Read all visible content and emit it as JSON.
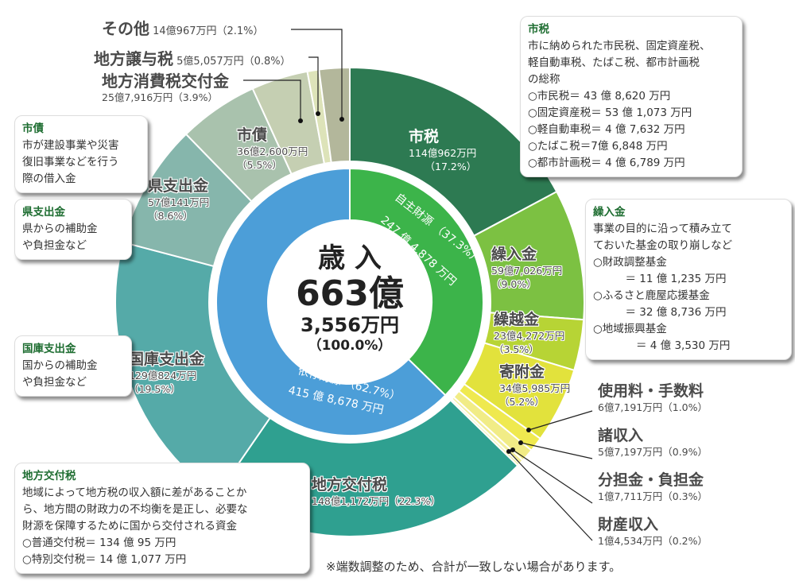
{
  "chart_data": {
    "type": "pie",
    "title": "歳入 663億3,556万円 (100.0%)",
    "total": {
      "label": "歳入",
      "amount": "663億3,556万円",
      "percent": 100.0
    },
    "inner_ring": [
      {
        "name": "自主財源",
        "amount": "247億4,878万円",
        "percent": 37.3,
        "color": "#3cb44a"
      },
      {
        "name": "依存財源",
        "amount": "415億8,678万円",
        "percent": 62.7,
        "color": "#4c9ed8"
      }
    ],
    "outer_ring": [
      {
        "name": "市税",
        "amount": "114億962万円",
        "percent": 17.2,
        "color": "#2d7a52",
        "group": "自主財源"
      },
      {
        "name": "繰入金",
        "amount": "59億7,026万円",
        "percent": 9.0,
        "color": "#7cc142",
        "group": "自主財源"
      },
      {
        "name": "繰越金",
        "amount": "23億4,272万円",
        "percent": 3.5,
        "color": "#b7d435",
        "group": "自主財源"
      },
      {
        "name": "寄附金",
        "amount": "34億5,985万円",
        "percent": 5.2,
        "color": "#e2e23c",
        "group": "自主財源"
      },
      {
        "name": "使用料・手数料",
        "amount": "6億7,191万円",
        "percent": 1.0,
        "color": "#efe94f",
        "group": "自主財源"
      },
      {
        "name": "諸収入",
        "amount": "5億7,197万円",
        "percent": 0.9,
        "color": "#f1ec86",
        "group": "自主財源"
      },
      {
        "name": "分担金・負担金",
        "amount": "1億7,711万円",
        "percent": 0.3,
        "color": "#f3ee9a",
        "group": "自主財源"
      },
      {
        "name": "財産収入",
        "amount": "1億4,534万円",
        "percent": 0.2,
        "color": "#f5f1b0",
        "group": "自主財源"
      },
      {
        "name": "地方交付税",
        "amount": "148億1,172万円",
        "percent": 22.3,
        "color": "#2fa090",
        "group": "依存財源"
      },
      {
        "name": "国庫支出金",
        "amount": "129億824万円",
        "percent": 19.5,
        "color": "#55aaa8",
        "group": "依存財源"
      },
      {
        "name": "県支出金",
        "amount": "57億141万円",
        "percent": 8.6,
        "color": "#86b6ac",
        "group": "依存財源"
      },
      {
        "name": "市債",
        "amount": "36億2,600万円",
        "percent": 5.5,
        "color": "#a9c2ad",
        "group": "依存財源"
      },
      {
        "name": "地方消費税交付金",
        "amount": "25億7,916万円",
        "percent": 3.9,
        "color": "#c5cfb2",
        "group": "依存財源"
      },
      {
        "name": "地方譲与税",
        "amount": "5億5,057万円",
        "percent": 0.8,
        "color": "#dde3b9",
        "group": "依存財源"
      },
      {
        "name": "その他",
        "amount": "14億967万円",
        "percent": 2.1,
        "color": "#b3b79b",
        "group": "依存財源"
      }
    ],
    "note": "※端数調整のため、合計が一致しない場合があります。"
  },
  "center": {
    "title": "歳 入",
    "big": "663億",
    "sub": "3,556万円",
    "pct": "（100.0%）"
  },
  "inner_labels": {
    "self": {
      "line1": "自主財源 （37.3%）",
      "line2": "247 億 4,878 万円"
    },
    "dep": {
      "line1": "依存財源 （62.7%）",
      "line2": "415 億 8,678 万円"
    }
  },
  "labels": {
    "shizei": {
      "name": "市税",
      "amount": "114億962万円",
      "pct": "（17.2%）"
    },
    "kurinyu": {
      "name": "繰入金",
      "amount": "59億7,026万円",
      "pct": "（9.0%）"
    },
    "kurikoshi": {
      "name": "繰越金",
      "amount": "23億4,272万円",
      "pct": "（3.5%）"
    },
    "kifu": {
      "name": "寄附金",
      "amount": "34億5,985万円",
      "pct": "（5.2%）"
    },
    "shiyoryo": {
      "name": "使用料・手数料",
      "amount": "6億7,191万円（1.0%）"
    },
    "shoshu": {
      "name": "諸収入",
      "amount": "5億7,197万円（0.9%）"
    },
    "buntan": {
      "name": "分担金・負担金",
      "amount": "1億7,711万円（0.3%）"
    },
    "zaisan": {
      "name": "財産収入",
      "amount": "1億4,534万円（0.2%）"
    },
    "kofuzei": {
      "name": "地方交付税",
      "amount": "148億1,172万円（22.3%）"
    },
    "kokko": {
      "name": "国庫支出金",
      "amount": "129億824万円",
      "pct": "（19.5%）"
    },
    "ken": {
      "name": "県支出金",
      "amount": "57億141万円",
      "pct": "（8.6%）"
    },
    "shisai": {
      "name": "市債",
      "amount": "36億2,600万円",
      "pct": "（5.5%）"
    },
    "shohizei": {
      "name": "地方消費税交付金",
      "amount": "25億7,916万円（3.9%）"
    },
    "joyozei": {
      "name": "地方譲与税",
      "amount": "5億5,057万円（0.8%）"
    },
    "sonota": {
      "name": "その他",
      "amount": "14億967万円（2.1%）"
    }
  },
  "boxes": {
    "shizei": {
      "title": "市税",
      "lines": [
        "市に納められた市民税、固定資産税、",
        "軽自動車税、たばこ税、都市計画税",
        "の総称",
        "○市民税＝ 43 億 8,620 万円",
        "○固定資産税＝ 53 億 1,073 万円",
        "○軽自動車税＝ 4 億 7,632 万円",
        "○たばこ税＝7億 6,848 万円",
        "○都市計画税＝ 4 億 6,789 万円"
      ]
    },
    "kurinyu": {
      "title": "繰入金",
      "lines": [
        "事業の目的に沿って積み立て",
        "ておいた基金の取り崩しなど",
        "○財政調整基金",
        "　　　＝ 11 億 1,235 万円",
        "○ふるさと鹿屋応援基金",
        "　　　＝ 32 億 8,736 万円",
        "○地域振興基金",
        "　　　　＝ 4 億 3,530 万円"
      ]
    },
    "shisai": {
      "title": "市債",
      "lines": [
        "市が建設事業や災害",
        "復旧事業などを行う",
        "際の借入金"
      ]
    },
    "ken": {
      "title": "県支出金",
      "lines": [
        "県からの補助金",
        "や負担金など"
      ]
    },
    "kokko": {
      "title": "国庫支出金",
      "lines": [
        "国からの補助金",
        "や負担金など"
      ]
    },
    "kofuzei": {
      "title": "地方交付税",
      "lines": [
        "地域によって地方税の収入額に差があることか",
        "ら、地方間の財政力の不均衡を是正し、必要な",
        "財源を保障するために国から交付される資金",
        "○普通交付税＝ 134 億 95 万円",
        "○特別交付税＝ 14 億 1,077 万円"
      ]
    }
  },
  "note": "※端数調整のため、合計が一致しない場合があります。"
}
